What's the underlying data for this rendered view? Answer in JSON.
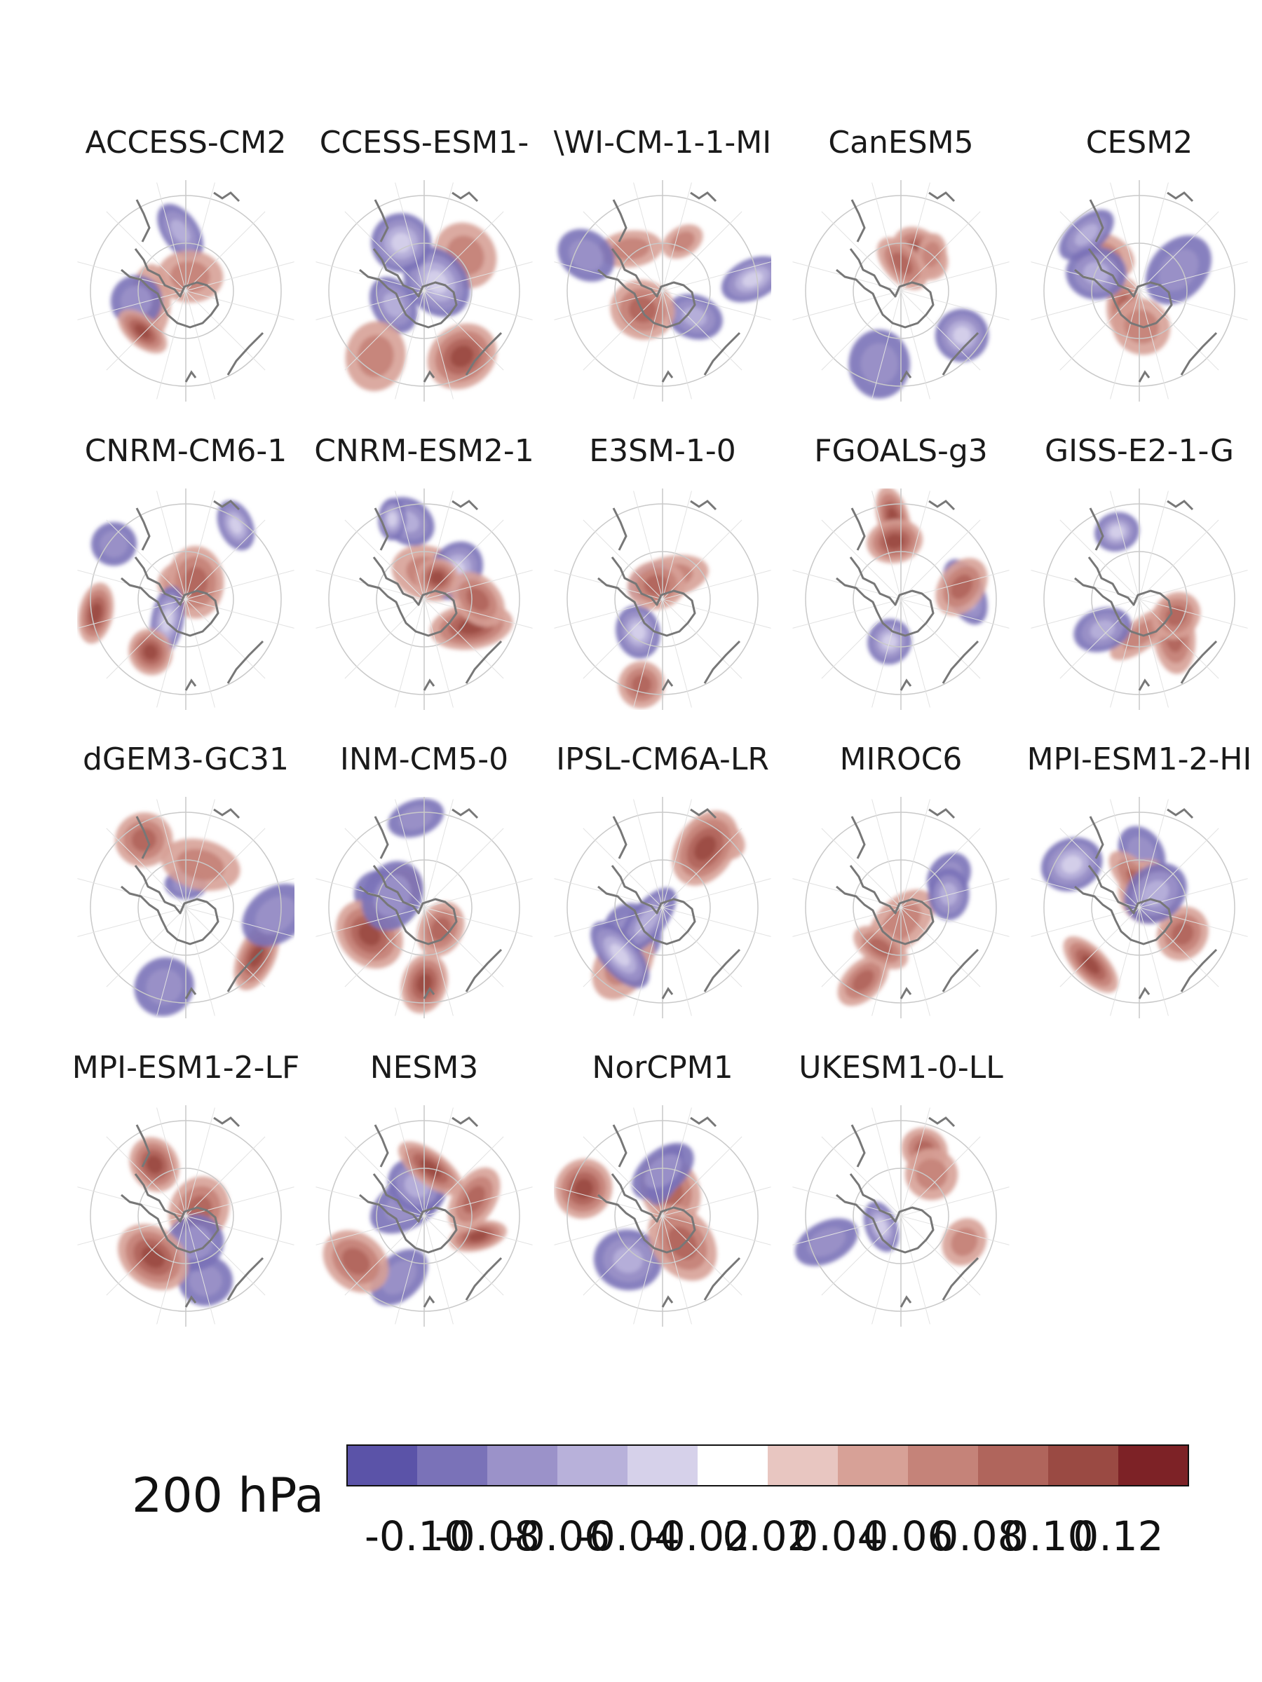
{
  "figure": {
    "level_label": "200 hPa"
  },
  "panels": [
    {
      "name": "ACCESS-CM2"
    },
    {
      "name": "CCESS-ESM1-"
    },
    {
      "name": "\\WI-CM-1-1-MI"
    },
    {
      "name": "CanESM5"
    },
    {
      "name": "CESM2"
    },
    {
      "name": "CNRM-CM6-1"
    },
    {
      "name": "CNRM-ESM2-1"
    },
    {
      "name": "E3SM-1-0"
    },
    {
      "name": "FGOALS-g3"
    },
    {
      "name": "GISS-E2-1-G"
    },
    {
      "name": "dGEM3-GC31"
    },
    {
      "name": "INM-CM5-0"
    },
    {
      "name": "IPSL-CM6A-LR"
    },
    {
      "name": "MIROC6"
    },
    {
      "name": "MPI-ESM1-2-HI"
    },
    {
      "name": "MPI-ESM1-2-LF"
    },
    {
      "name": "NESM3"
    },
    {
      "name": "NorCPM1"
    },
    {
      "name": "UKESM1-0-LL"
    }
  ],
  "colorbar": {
    "colors": [
      "#5b53a8",
      "#7a72b8",
      "#9b92c9",
      "#b8b1da",
      "#d6d1ea",
      "#ffffff",
      "#e8c6c1",
      "#d7a197",
      "#c58379",
      "#b0655c",
      "#9a4a43",
      "#7d2226"
    ],
    "ticks": [
      "-0.10",
      "-0.08",
      "-0.06",
      "-0.04",
      "-0.02",
      "0.02",
      "0.04",
      "0.06",
      "0.08",
      "0.10",
      "0.12"
    ]
  }
}
